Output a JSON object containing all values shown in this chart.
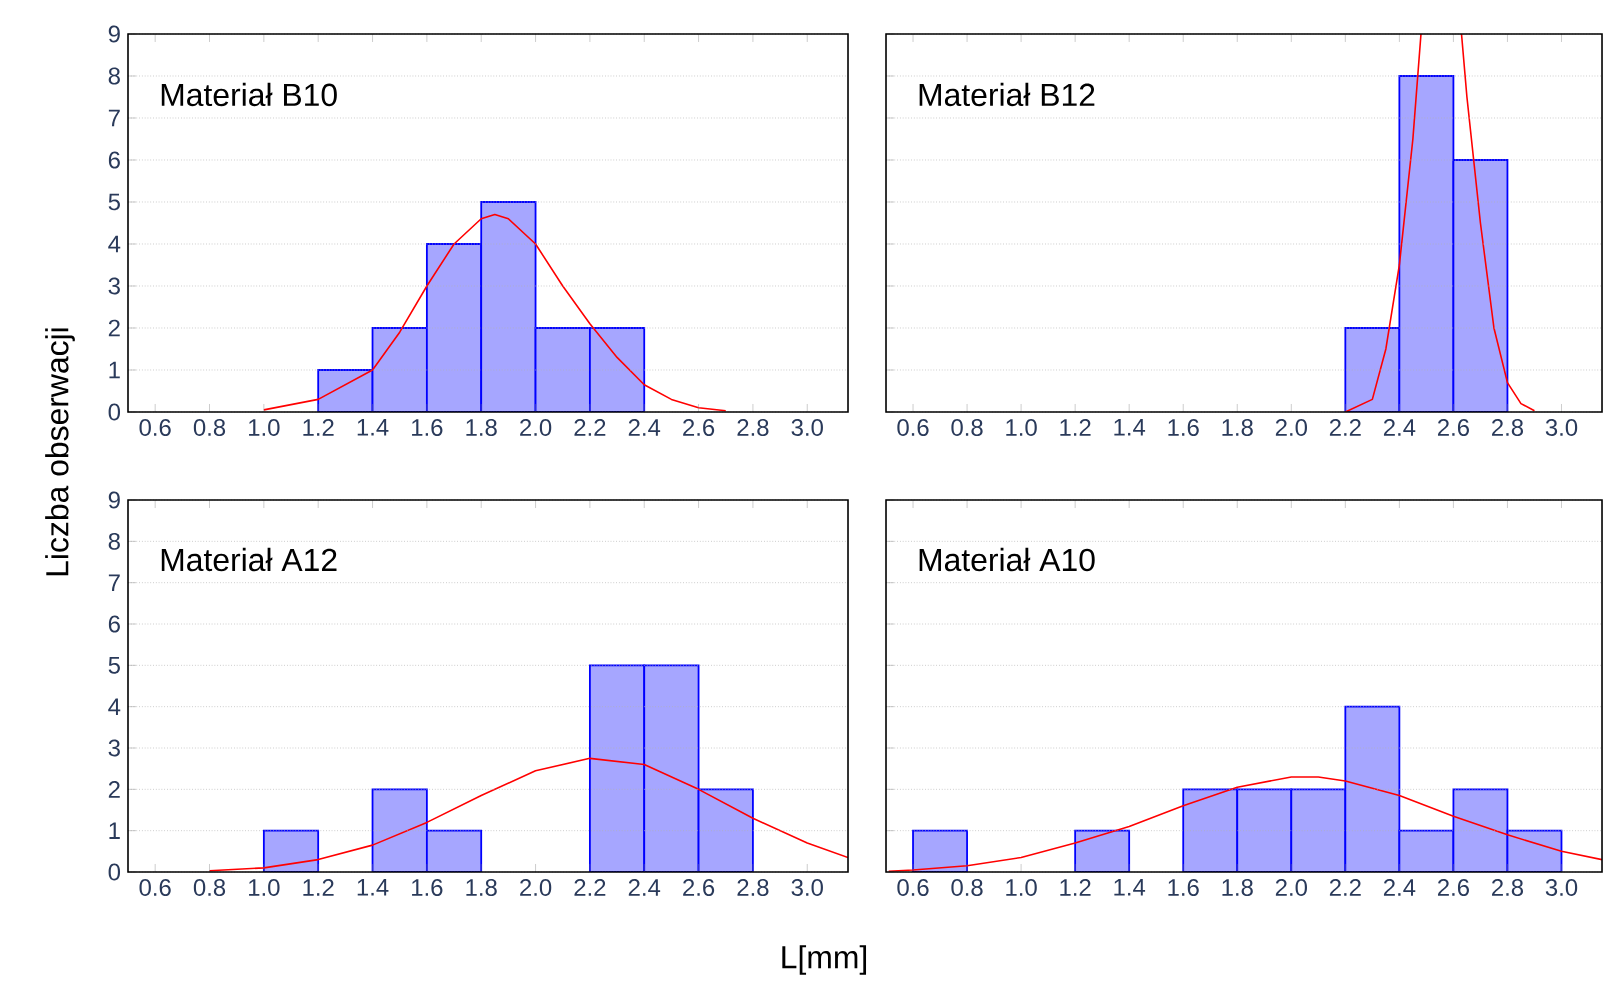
{
  "chart_data": [
    {
      "type": "histogram",
      "title": "Materiał B10",
      "ylabel": "Liczba obserwacji",
      "bins": [
        0.6,
        0.8,
        1.0,
        1.2,
        1.4,
        1.6,
        1.8,
        2.0,
        2.2,
        2.4,
        2.6,
        2.8,
        3.0
      ],
      "series": [
        {
          "type": "histogram",
          "color": "#0000ff",
          "values": [
            0,
            0,
            0,
            1,
            2,
            4,
            5,
            2,
            2,
            0,
            0,
            0
          ]
        },
        {
          "type": "line",
          "color": "#ff0000",
          "x": [
            1.0,
            1.2,
            1.4,
            1.5,
            1.6,
            1.7,
            1.8,
            1.85,
            1.9,
            2.0,
            2.1,
            2.2,
            2.3,
            2.4,
            2.5,
            2.6,
            2.7
          ],
          "values": [
            0.05,
            0.3,
            1.0,
            1.9,
            3.0,
            4.0,
            4.6,
            4.7,
            4.6,
            4.0,
            3.0,
            2.1,
            1.3,
            0.65,
            0.3,
            0.1,
            0.03
          ]
        }
      ],
      "xlim": [
        0.5,
        3.15
      ],
      "ylim": [
        0,
        9
      ],
      "xticks": [
        0.6,
        0.8,
        {
          "value": 1.0,
          "label": "1.0"
        },
        1.2,
        1.4,
        1.6,
        1.8,
        {
          "value": 2.0,
          "label": "2.0"
        },
        2.2,
        2.4,
        2.6,
        2.8,
        {
          "value": 3.0,
          "label": "3.0"
        }
      ],
      "yticks": [
        0,
        1,
        2,
        3,
        4,
        5,
        6,
        7,
        8,
        9
      ],
      "grid": "y"
    },
    {
      "type": "histogram",
      "title": "Materiał B12",
      "tick_labels": "x",
      "bins": [
        0.6,
        0.8,
        1.0,
        1.2,
        1.4,
        1.6,
        1.8,
        2.0,
        2.2,
        2.4,
        2.6,
        2.8,
        3.0
      ],
      "series": [
        {
          "type": "histogram",
          "color": "#0000ff",
          "values": [
            0,
            0,
            0,
            0,
            0,
            0,
            0,
            0,
            2,
            8,
            6,
            0
          ]
        },
        {
          "type": "line",
          "color": "#ff0000",
          "x": [
            2.2,
            2.3,
            2.35,
            2.4,
            2.45,
            2.48,
            2.55,
            2.63,
            2.65,
            2.7,
            2.75,
            2.8,
            2.85,
            2.9
          ],
          "values": [
            0,
            0.3,
            1.5,
            3.5,
            6.5,
            9,
            null,
            9,
            7.5,
            4.5,
            2,
            0.7,
            0.2,
            0.03
          ]
        }
      ],
      "xlim": [
        0.5,
        3.15
      ],
      "ylim": [
        0,
        9
      ],
      "xticks": [
        0.6,
        0.8,
        {
          "value": 1.0,
          "label": "1.0"
        },
        1.2,
        1.4,
        1.6,
        1.8,
        {
          "value": 2.0,
          "label": "2.0"
        },
        2.2,
        2.4,
        2.6,
        2.8,
        {
          "value": 3.0,
          "label": "3.0"
        }
      ],
      "yticks": [
        0,
        1,
        2,
        3,
        4,
        5,
        6,
        7,
        8,
        9
      ],
      "grid": "y"
    },
    {
      "type": "histogram",
      "title": "Materiał A12",
      "xlabel": "L[mm]",
      "bins": [
        0.6,
        0.8,
        1.0,
        1.2,
        1.4,
        1.6,
        1.8,
        2.0,
        2.2,
        2.4,
        2.6,
        2.8,
        3.0
      ],
      "series": [
        {
          "type": "histogram",
          "color": "#0000ff",
          "values": [
            0,
            0,
            1,
            0,
            2,
            1,
            0,
            0,
            5,
            5,
            2,
            0
          ]
        },
        {
          "type": "line",
          "color": "#ff0000",
          "x": [
            0.8,
            1.0,
            1.2,
            1.4,
            1.6,
            1.8,
            2.0,
            2.2,
            2.4,
            2.6,
            2.8,
            3.0,
            3.15
          ],
          "values": [
            0.03,
            0.1,
            0.3,
            0.65,
            1.2,
            1.85,
            2.45,
            2.75,
            2.6,
            2.0,
            1.3,
            0.7,
            0.35
          ]
        }
      ],
      "xlim": [
        0.5,
        3.15
      ],
      "ylim": [
        0,
        9
      ],
      "xticks": [
        0.6,
        0.8,
        {
          "value": 1.0,
          "label": "1.0"
        },
        1.2,
        1.4,
        1.6,
        1.8,
        {
          "value": 2.0,
          "label": "2.0"
        },
        2.2,
        2.4,
        2.6,
        2.8,
        {
          "value": 3.0,
          "label": "3.0"
        }
      ],
      "yticks": [
        0,
        1,
        2,
        3,
        4,
        5,
        6,
        7,
        8,
        9
      ],
      "grid": "y"
    },
    {
      "type": "histogram",
      "title": "Materiał A10",
      "tick_labels": "x",
      "bins": [
        0.6,
        0.8,
        1.0,
        1.2,
        1.4,
        1.6,
        1.8,
        2.0,
        2.2,
        2.4,
        2.6,
        2.8,
        3.0
      ],
      "series": [
        {
          "type": "histogram",
          "color": "#0000ff",
          "values": [
            1,
            0,
            0,
            1,
            0,
            2,
            2,
            2,
            4,
            1,
            2,
            1
          ]
        },
        {
          "type": "line",
          "color": "#ff0000",
          "x": [
            0.51,
            0.6,
            0.8,
            1.0,
            1.2,
            1.4,
            1.6,
            1.8,
            2.0,
            2.1,
            2.2,
            2.4,
            2.6,
            2.8,
            3.0,
            3.15
          ],
          "values": [
            0.02,
            0.05,
            0.15,
            0.35,
            0.7,
            1.1,
            1.6,
            2.05,
            2.3,
            2.3,
            2.2,
            1.85,
            1.35,
            0.9,
            0.5,
            0.3
          ]
        }
      ],
      "xlim": [
        0.5,
        3.15
      ],
      "ylim": [
        0,
        9
      ],
      "xticks": [
        0.6,
        0.8,
        {
          "value": 1.0,
          "label": "1.0"
        },
        1.2,
        1.4,
        1.6,
        1.8,
        {
          "value": 2.0,
          "label": "2.0"
        },
        2.2,
        2.4,
        2.6,
        2.8,
        {
          "value": 3.0,
          "label": "3.0"
        }
      ],
      "yticks": [
        0,
        1,
        2,
        3,
        4,
        5,
        6,
        7,
        8,
        9
      ],
      "grid": "y"
    }
  ]
}
